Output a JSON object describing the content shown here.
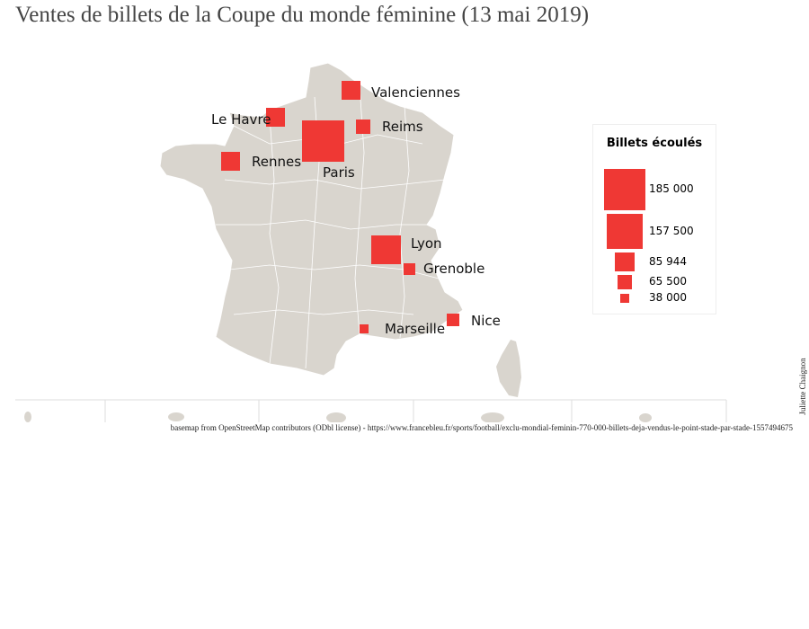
{
  "title": "Ventes de billets de la Coupe du monde féminine (13 mai 2019)",
  "colors": {
    "land": "#d9d5ce",
    "marker": "#ef3834",
    "border": "#ffffff"
  },
  "cities": [
    {
      "name": "Valenciennes"
    },
    {
      "name": "Le Havre"
    },
    {
      "name": "Reims"
    },
    {
      "name": "Paris"
    },
    {
      "name": "Rennes"
    },
    {
      "name": "Lyon"
    },
    {
      "name": "Grenoble"
    },
    {
      "name": "Nice"
    },
    {
      "name": "Marseille"
    }
  ],
  "legend": {
    "title": "Billets écoulés",
    "items": [
      "185 000",
      "157 500",
      "85 944",
      "65 500",
      "38 000"
    ]
  },
  "attribution": "basemap from OpenStreetMap contributors (ODbl license) - https://www.francebleu.fr/sports/football/exclu-mondial-feminin-770-000-billets-deja-vendus-le-point-stade-par-stade-1557494675",
  "credit": "Juliette Chaignon"
}
